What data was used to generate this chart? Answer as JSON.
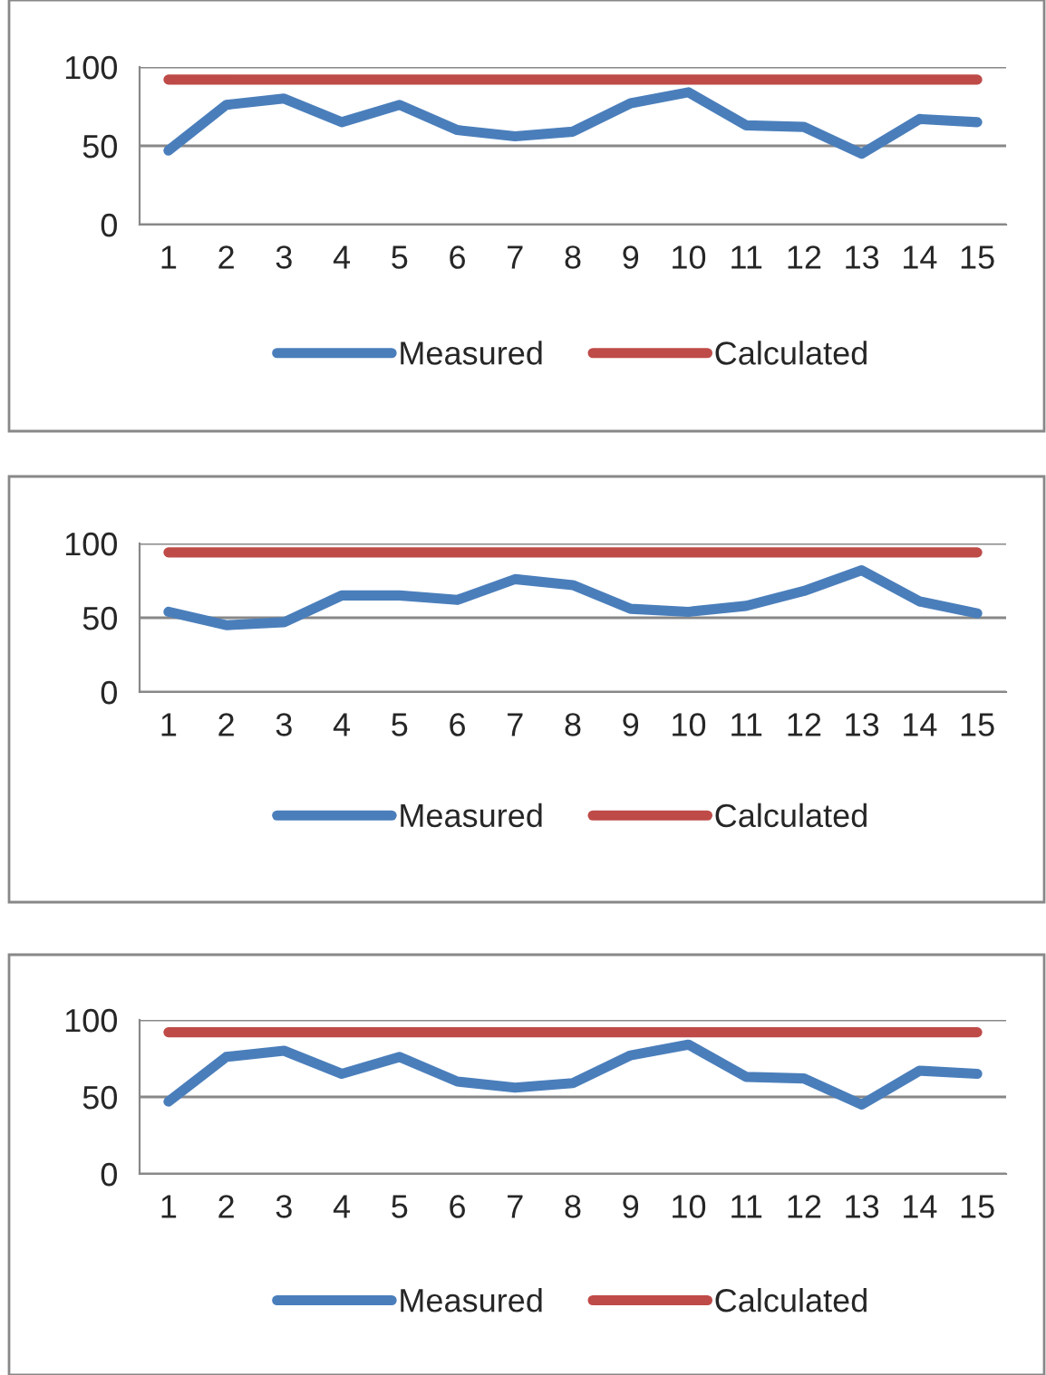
{
  "chart_data": [
    {
      "type": "line",
      "categories": [
        "1",
        "2",
        "3",
        "4",
        "5",
        "6",
        "7",
        "8",
        "9",
        "10",
        "11",
        "12",
        "13",
        "14",
        "15"
      ],
      "ylim": [
        0,
        100
      ],
      "yticks": [
        0,
        50,
        100
      ],
      "grid": "y",
      "legend": "bottom",
      "series": [
        {
          "name": "Measured",
          "color": "#4a7ebb",
          "values": [
            47,
            76,
            80,
            65,
            76,
            60,
            56,
            59,
            77,
            84,
            63,
            62,
            45,
            67,
            65
          ]
        },
        {
          "name": "Calculated",
          "color": "#be4b48",
          "values": [
            92,
            92,
            92,
            92,
            92,
            92,
            92,
            92,
            92,
            92,
            92,
            92,
            92,
            92,
            92
          ]
        }
      ]
    },
    {
      "type": "line",
      "categories": [
        "1",
        "2",
        "3",
        "4",
        "5",
        "6",
        "7",
        "8",
        "9",
        "10",
        "11",
        "12",
        "13",
        "14",
        "15"
      ],
      "ylim": [
        0,
        100
      ],
      "yticks": [
        0,
        50,
        100
      ],
      "grid": "y",
      "legend": "bottom",
      "series": [
        {
          "name": "Measured",
          "color": "#4a7ebb",
          "values": [
            54,
            45,
            47,
            65,
            65,
            62,
            76,
            72,
            56,
            54,
            58,
            68,
            82,
            61,
            53
          ]
        },
        {
          "name": "Calculated",
          "color": "#be4b48",
          "values": [
            94,
            94,
            94,
            94,
            94,
            94,
            94,
            94,
            94,
            94,
            94,
            94,
            94,
            94,
            94
          ]
        }
      ]
    },
    {
      "type": "line",
      "categories": [
        "1",
        "2",
        "3",
        "4",
        "5",
        "6",
        "7",
        "8",
        "9",
        "10",
        "11",
        "12",
        "13",
        "14",
        "15"
      ],
      "ylim": [
        0,
        100
      ],
      "yticks": [
        0,
        50,
        100
      ],
      "grid": "y",
      "legend": "bottom",
      "series": [
        {
          "name": "Measured",
          "color": "#4a7ebb",
          "values": [
            47,
            76,
            80,
            65,
            76,
            60,
            56,
            59,
            77,
            84,
            63,
            62,
            45,
            67,
            65
          ]
        },
        {
          "name": "Calculated",
          "color": "#be4b48",
          "values": [
            92,
            92,
            92,
            92,
            92,
            92,
            92,
            92,
            92,
            92,
            92,
            92,
            92,
            92,
            92
          ]
        }
      ]
    }
  ]
}
